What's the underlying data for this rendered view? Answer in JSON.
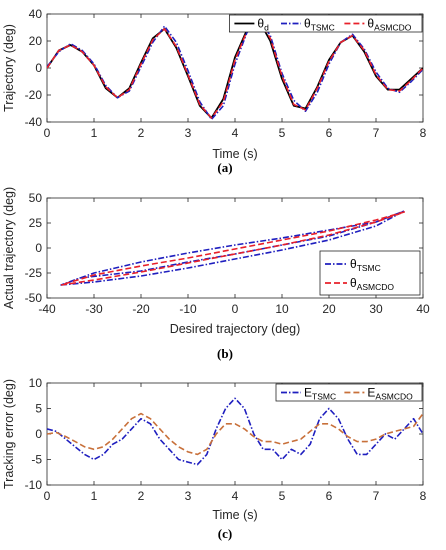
{
  "chart_data": [
    {
      "type": "line",
      "caption": "(a)",
      "xlabel": "Time (s)",
      "ylabel": "Trajectory (deg)",
      "xlim": [
        0,
        8
      ],
      "ylim": [
        -40,
        40
      ],
      "xticks": [
        "0",
        "1",
        "2",
        "3",
        "4",
        "5",
        "6",
        "7",
        "8"
      ],
      "yticks": [
        "-40",
        "-20",
        "0",
        "20",
        "40"
      ],
      "grid": false,
      "legend_position": "top-right",
      "legend_orientation": "horizontal",
      "series": [
        {
          "name": "θd",
          "label_main": "θ",
          "label_sub": "d",
          "color": "#000000",
          "style": "solid",
          "x": [
            0,
            0.25,
            0.5,
            0.75,
            1,
            1.25,
            1.5,
            1.75,
            2,
            2.25,
            2.5,
            2.75,
            3,
            3.25,
            3.5,
            3.75,
            4,
            4.25,
            4.5,
            4.75,
            5,
            5.25,
            5.5,
            5.75,
            6,
            6.25,
            6.5,
            6.75,
            7,
            7.25,
            7.5,
            7.75,
            8
          ],
          "y": [
            0,
            13,
            17,
            12,
            2,
            -15,
            -22,
            -15,
            4,
            22,
            29,
            15,
            -6,
            -28,
            -37,
            -23,
            8,
            28,
            36,
            20,
            -8,
            -28,
            -30,
            -14,
            6,
            19,
            24,
            12,
            -6,
            -16,
            -16,
            -8,
            0
          ]
        },
        {
          "name": "θTSMC",
          "label_main": "θ",
          "label_sub": "TSMC",
          "color": "#1f1fbf",
          "style": "dashdot",
          "x": [
            0,
            0.25,
            0.5,
            0.75,
            1,
            1.25,
            1.5,
            1.75,
            2,
            2.25,
            2.5,
            2.75,
            3,
            3.25,
            3.5,
            3.75,
            4,
            4.25,
            4.5,
            4.75,
            5,
            5.25,
            5.5,
            5.75,
            6,
            6.25,
            6.5,
            6.75,
            7,
            7.25,
            7.5,
            7.75,
            8
          ],
          "y": [
            1,
            12,
            18,
            13,
            3,
            -13,
            -22,
            -17,
            1,
            19,
            31,
            19,
            -2,
            -25,
            -38,
            -28,
            3,
            26,
            37,
            24,
            -4,
            -24,
            -32,
            -18,
            3,
            19,
            25,
            14,
            -3,
            -15,
            -18,
            -10,
            -1
          ]
        },
        {
          "name": "θASMCDO",
          "label_main": "θ",
          "label_sub": "ASMCDO",
          "color": "#e8202a",
          "style": "dashed",
          "x": [
            0,
            0.25,
            0.5,
            0.75,
            1,
            1.25,
            1.5,
            1.75,
            2,
            2.25,
            2.5,
            2.75,
            3,
            3.25,
            3.5,
            3.75,
            4,
            4.25,
            4.5,
            4.75,
            5,
            5.25,
            5.5,
            5.75,
            6,
            6.25,
            6.5,
            6.75,
            7,
            7.25,
            7.5,
            7.75,
            8
          ],
          "y": [
            0,
            13,
            17,
            12,
            2,
            -14,
            -22,
            -16,
            3,
            21,
            29,
            16,
            -5,
            -27,
            -37,
            -25,
            6,
            27,
            36,
            22,
            -6,
            -27,
            -31,
            -15,
            5,
            19,
            24,
            13,
            -5,
            -16,
            -17,
            -9,
            0
          ]
        }
      ]
    },
    {
      "type": "line",
      "caption": "(b)",
      "xlabel": "Desired trajectory (deg)",
      "ylabel": "Actual trajectory (deg)",
      "xlim": [
        -40,
        40
      ],
      "ylim": [
        -50,
        50
      ],
      "xticks": [
        "-40",
        "-30",
        "-20",
        "-10",
        "0",
        "10",
        "20",
        "30",
        "40"
      ],
      "yticks": [
        "-50",
        "-25",
        "0",
        "25",
        "50"
      ],
      "grid": false,
      "legend_position": "bottom-right",
      "legend_orientation": "vertical",
      "series": [
        {
          "name": "θTSMC",
          "label_main": "θ",
          "label_sub": "TSMC",
          "color": "#1f1fbf",
          "style": "dashdot",
          "x": [
            -37,
            -30,
            -20,
            -10,
            0,
            10,
            20,
            30,
            36,
            30,
            20,
            10,
            0,
            -10,
            -20,
            -30,
            -37,
            -33,
            -20,
            -10,
            0,
            10,
            20,
            30,
            36
          ],
          "y": [
            -37,
            -34,
            -28,
            -20,
            -11,
            -2,
            8,
            22,
            37,
            26,
            18,
            10,
            3,
            -5,
            -14,
            -25,
            -37,
            -30,
            -23,
            -14,
            -6,
            3,
            12,
            26,
            37
          ]
        },
        {
          "name": "θASMCDO",
          "label_main": "θ",
          "label_sub": "ASMCDO",
          "color": "#e8202a",
          "style": "dashed",
          "x": [
            -37,
            -30,
            -20,
            -10,
            0,
            10,
            20,
            30,
            36,
            30,
            20,
            10,
            0,
            -10,
            -20,
            -30,
            -37
          ],
          "y": [
            -37,
            -32,
            -24,
            -15,
            -6,
            3,
            13,
            26,
            36,
            28,
            17,
            8,
            -1,
            -10,
            -18,
            -27,
            -37
          ]
        }
      ]
    },
    {
      "type": "line",
      "caption": "(c)",
      "xlabel": "Time (s)",
      "ylabel": "Tracking error (deg)",
      "xlim": [
        0,
        8
      ],
      "ylim": [
        -10,
        10
      ],
      "xticks": [
        "0",
        "1",
        "2",
        "3",
        "4",
        "5",
        "6",
        "7",
        "8"
      ],
      "yticks": [
        "-10",
        "-5",
        "0",
        "5",
        "10"
      ],
      "grid": false,
      "legend_position": "top-right",
      "legend_orientation": "horizontal",
      "series": [
        {
          "name": "ETSMC",
          "label_main": "E",
          "label_sub": "TSMC",
          "color": "#1f1fbf",
          "style": "dashdot",
          "x": [
            0,
            0.2,
            0.4,
            0.6,
            0.8,
            1,
            1.2,
            1.4,
            1.6,
            1.8,
            2,
            2.2,
            2.4,
            2.6,
            2.8,
            3,
            3.2,
            3.4,
            3.6,
            3.8,
            4,
            4.2,
            4.4,
            4.6,
            4.8,
            5,
            5.2,
            5.4,
            5.6,
            5.8,
            6,
            6.2,
            6.4,
            6.6,
            6.8,
            7,
            7.2,
            7.4,
            7.6,
            7.8,
            8
          ],
          "y": [
            1,
            0.5,
            -1,
            -2.5,
            -4,
            -5,
            -4,
            -2,
            -1,
            1,
            3,
            2,
            -1,
            -3,
            -5,
            -5.5,
            -6,
            -4,
            1,
            5,
            7,
            5,
            0,
            -3,
            -3,
            -5,
            -3,
            -4,
            -2,
            3,
            5,
            3,
            -1,
            -4,
            -4,
            -2,
            0,
            -1,
            1,
            3,
            0
          ]
        },
        {
          "name": "EASMCDO",
          "label_main": "E",
          "label_sub": "ASMCDO",
          "color": "#c8703a",
          "style": "dashed",
          "x": [
            0,
            0.2,
            0.4,
            0.6,
            0.8,
            1,
            1.2,
            1.4,
            1.6,
            1.8,
            2,
            2.2,
            2.4,
            2.6,
            2.8,
            3,
            3.2,
            3.4,
            3.6,
            3.8,
            4,
            4.2,
            4.4,
            4.6,
            4.8,
            5,
            5.2,
            5.4,
            5.6,
            5.8,
            6,
            6.2,
            6.4,
            6.6,
            6.8,
            7,
            7.2,
            7.4,
            7.6,
            7.8,
            8
          ],
          "y": [
            0,
            0.3,
            -0.5,
            -1.5,
            -2.5,
            -3,
            -2.5,
            -1,
            1,
            3,
            4,
            3,
            1,
            -1,
            -2.5,
            -3.5,
            -4,
            -3,
            0,
            2,
            2,
            1,
            -0.5,
            -1.5,
            -1.5,
            -2,
            -1.5,
            -1,
            0.5,
            2,
            2,
            1,
            -0.5,
            -1.5,
            -1.5,
            -1,
            0,
            0.5,
            1,
            1.5,
            4
          ]
        }
      ]
    }
  ]
}
